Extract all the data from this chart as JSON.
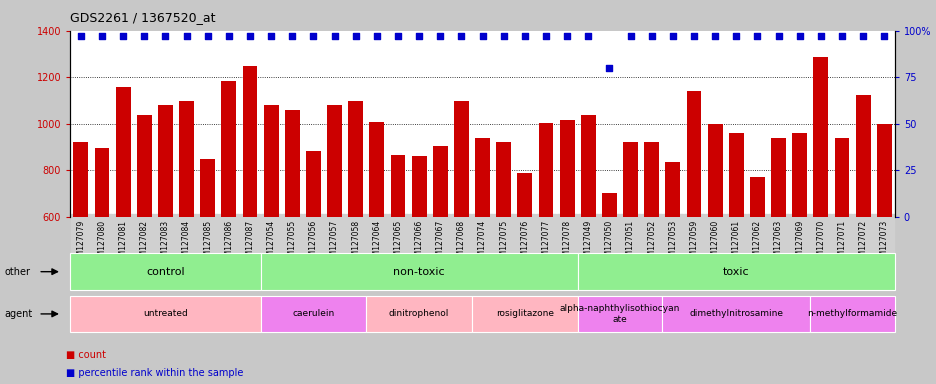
{
  "title": "GDS2261 / 1367520_at",
  "samples": [
    "GSM127079",
    "GSM127080",
    "GSM127081",
    "GSM127082",
    "GSM127083",
    "GSM127084",
    "GSM127085",
    "GSM127086",
    "GSM127087",
    "GSM127054",
    "GSM127055",
    "GSM127056",
    "GSM127057",
    "GSM127058",
    "GSM127064",
    "GSM127065",
    "GSM127066",
    "GSM127067",
    "GSM127068",
    "GSM127074",
    "GSM127075",
    "GSM127076",
    "GSM127077",
    "GSM127078",
    "GSM127049",
    "GSM127050",
    "GSM127051",
    "GSM127052",
    "GSM127053",
    "GSM127059",
    "GSM127060",
    "GSM127061",
    "GSM127062",
    "GSM127063",
    "GSM127069",
    "GSM127070",
    "GSM127071",
    "GSM127072",
    "GSM127073"
  ],
  "counts": [
    920,
    895,
    1160,
    1040,
    1080,
    1100,
    850,
    1185,
    1250,
    1080,
    1060,
    885,
    1080,
    1100,
    1010,
    865,
    860,
    905,
    1100,
    940,
    920,
    790,
    1005,
    1015,
    1040,
    705,
    920,
    920,
    835,
    1140,
    1000,
    960,
    770,
    940,
    960,
    1285,
    940,
    1125,
    1000
  ],
  "percentile_ranks": [
    97,
    97,
    97,
    97,
    97,
    97,
    97,
    97,
    97,
    97,
    97,
    97,
    97,
    97,
    97,
    97,
    97,
    97,
    97,
    97,
    97,
    97,
    97,
    97,
    97,
    80,
    97,
    97,
    97,
    97,
    97,
    97,
    97,
    97,
    97,
    97,
    97,
    97,
    97
  ],
  "bar_color": "#cc0000",
  "dot_color": "#0000cc",
  "ylim_left": [
    600,
    1400
  ],
  "ylim_right": [
    0,
    100
  ],
  "yticks_left": [
    600,
    800,
    1000,
    1200,
    1400
  ],
  "yticks_right": [
    0,
    25,
    50,
    75,
    100
  ],
  "groups": [
    {
      "label": "control",
      "start": 0,
      "end": 8,
      "color": "#90ee90"
    },
    {
      "label": "non-toxic",
      "start": 9,
      "end": 23,
      "color": "#90ee90"
    },
    {
      "label": "toxic",
      "start": 24,
      "end": 38,
      "color": "#90ee90"
    }
  ],
  "agents": [
    {
      "label": "untreated",
      "start": 0,
      "end": 8,
      "color": "#ffb6c1"
    },
    {
      "label": "caerulein",
      "start": 9,
      "end": 13,
      "color": "#ee82ee"
    },
    {
      "label": "dinitrophenol",
      "start": 14,
      "end": 18,
      "color": "#ffb6c1"
    },
    {
      "label": "rosiglitazone",
      "start": 19,
      "end": 23,
      "color": "#ffb6c1"
    },
    {
      "label": "alpha-naphthylisothiocyan\nate",
      "start": 24,
      "end": 27,
      "color": "#ee82ee"
    },
    {
      "label": "dimethylnitrosamine",
      "start": 28,
      "end": 34,
      "color": "#ee82ee"
    },
    {
      "label": "n-methylformamide",
      "start": 35,
      "end": 38,
      "color": "#ee82ee"
    }
  ],
  "background_color": "#c8c8c8",
  "plot_bg_color": "#ffffff",
  "tick_bg_color": "#d0d0d0"
}
